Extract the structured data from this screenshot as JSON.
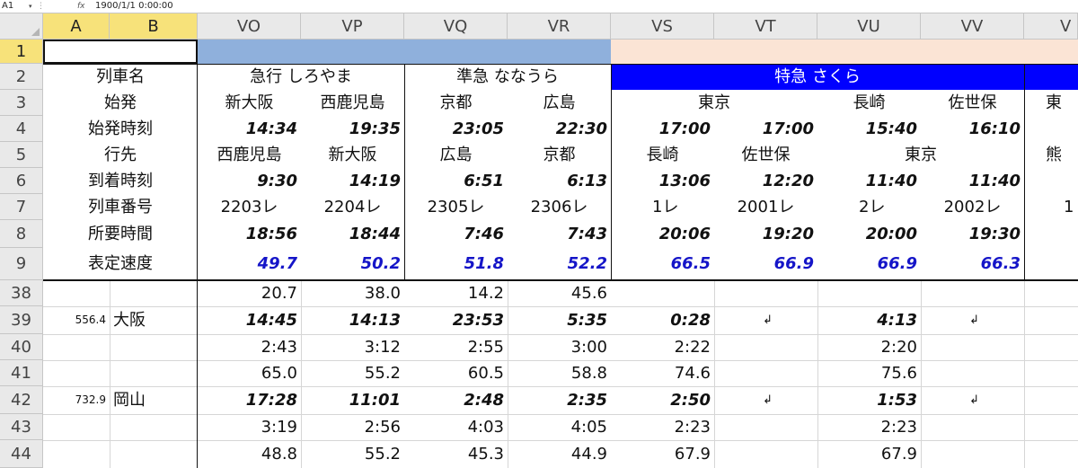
{
  "formula_bar": {
    "name_box": "A1",
    "fx": "fx",
    "value": "1900/1/1  0:00:00"
  },
  "columns": [
    "A",
    "B",
    "VO",
    "VP",
    "VQ",
    "VR",
    "VS",
    "VT",
    "VU",
    "VV",
    "V"
  ],
  "rows": [
    "1",
    "2",
    "3",
    "4",
    "5",
    "6",
    "7",
    "8",
    "9",
    "38",
    "39",
    "40",
    "41",
    "42",
    "43",
    "44"
  ],
  "labels": {
    "r2": "列車名",
    "r3": "始発",
    "r4": "始発時刻",
    "r5": "行先",
    "r6": "到着時刻",
    "r7": "列車番号",
    "r8": "所要時間",
    "r9": "表定速度",
    "r39_km": "556.4",
    "r39_station": "大阪",
    "r42_km": "732.9",
    "r42_station": "岡山"
  },
  "trains": {
    "shiroyama": "急行 しろやま",
    "nanaura": "準急 ななうら",
    "sakura": "特急 さくら"
  },
  "grid": {
    "r3": [
      "新大阪",
      "西鹿児島",
      "京都",
      "広島",
      "東京",
      "",
      "長崎",
      "佐世保",
      "東"
    ],
    "r4": [
      "14:34",
      "19:35",
      "23:05",
      "22:30",
      "17:00",
      "17:00",
      "15:40",
      "16:10",
      ""
    ],
    "r5": [
      "西鹿児島",
      "新大阪",
      "広島",
      "京都",
      "長崎",
      "佐世保",
      "東京",
      "",
      "熊"
    ],
    "r6": [
      "9:30",
      "14:19",
      "6:51",
      "6:13",
      "13:06",
      "12:20",
      "11:40",
      "11:40",
      ""
    ],
    "r7": [
      "2203レ",
      "2204レ",
      "2305レ",
      "2306レ",
      "1レ",
      "2001レ",
      "2レ",
      "2002レ",
      "1"
    ],
    "r8": [
      "18:56",
      "18:44",
      "7:46",
      "7:43",
      "20:06",
      "19:20",
      "20:00",
      "19:30",
      ""
    ],
    "r9": [
      "49.7",
      "50.2",
      "51.8",
      "52.2",
      "66.5",
      "66.9",
      "66.9",
      "66.3",
      ""
    ],
    "r38": [
      "20.7",
      "38.0",
      "14.2",
      "45.6",
      "",
      "",
      "",
      "",
      ""
    ],
    "r39": [
      "14:45",
      "14:13",
      "23:53",
      "5:35",
      "0:28",
      "↲",
      "4:13",
      "↲",
      ""
    ],
    "r40": [
      "2:43",
      "3:12",
      "2:55",
      "3:00",
      "2:22",
      "",
      "2:20",
      "",
      ""
    ],
    "r41": [
      "65.0",
      "55.2",
      "60.5",
      "58.8",
      "74.6",
      "",
      "75.6",
      "",
      ""
    ],
    "r42": [
      "17:28",
      "11:01",
      "2:48",
      "2:35",
      "2:50",
      "↲",
      "1:53",
      "↲",
      ""
    ],
    "r43": [
      "3:19",
      "2:56",
      "4:03",
      "4:05",
      "2:23",
      "",
      "2:23",
      "",
      ""
    ],
    "r44": [
      "48.8",
      "55.2",
      "45.3",
      "44.9",
      "67.9",
      "",
      "67.9",
      "",
      ""
    ]
  },
  "colors": {
    "header_blue": "#8fb0dc",
    "header_peach": "#fbe4d5",
    "sakura_bg": "#0000ff",
    "speed_text": "#1515c8",
    "selected_header": "#f7e27a"
  }
}
